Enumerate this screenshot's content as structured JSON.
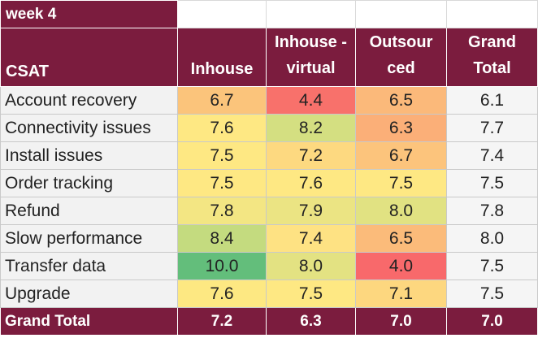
{
  "title": "week 4",
  "header": {
    "row_label": "CSAT",
    "columns": [
      "Inhouse",
      "Inhouse - virtual",
      "Outsour ced",
      "Grand Total"
    ],
    "columns_lines": [
      [
        "Inhouse"
      ],
      [
        "Inhouse -",
        "virtual"
      ],
      [
        "Outsour",
        "ced"
      ],
      [
        "Grand",
        "Total"
      ]
    ]
  },
  "rows": [
    {
      "label": "Account recovery",
      "values": [
        "6.7",
        "4.4",
        "6.5",
        "6.1"
      ],
      "colors": [
        "#fbc47b",
        "#f8716b",
        "#fbb97a",
        "#f5f5f5"
      ]
    },
    {
      "label": "Connectivity issues",
      "values": [
        "7.6",
        "8.2",
        "6.3",
        "7.7"
      ],
      "colors": [
        "#fee883",
        "#d4df81",
        "#fbaf78",
        "#f5f5f5"
      ]
    },
    {
      "label": "Install issues",
      "values": [
        "7.5",
        "7.2",
        "6.7",
        "7.4"
      ],
      "colors": [
        "#fee883",
        "#fdd980",
        "#fcc47c",
        "#f5f5f5"
      ]
    },
    {
      "label": "Order tracking",
      "values": [
        "7.5",
        "7.6",
        "7.5",
        "7.5"
      ],
      "colors": [
        "#fee883",
        "#fee883",
        "#fee883",
        "#f5f5f5"
      ]
    },
    {
      "label": "Refund",
      "values": [
        "7.8",
        "7.9",
        "8.0",
        "7.8"
      ],
      "colors": [
        "#f3e683",
        "#ebe483",
        "#e1e282",
        "#f5f5f5"
      ]
    },
    {
      "label": "Slow performance",
      "values": [
        "8.4",
        "7.4",
        "6.5",
        "8.0"
      ],
      "colors": [
        "#c4db7f",
        "#fee283",
        "#fbbb7a",
        "#f5f5f5"
      ]
    },
    {
      "label": "Transfer data",
      "values": [
        "10.0",
        "8.0",
        "4.0",
        "7.5"
      ],
      "colors": [
        "#63be7b",
        "#e3e282",
        "#f8696b",
        "#f5f5f5"
      ]
    },
    {
      "label": "Upgrade",
      "values": [
        "7.6",
        "7.5",
        "7.1",
        "7.5"
      ],
      "colors": [
        "#fde882",
        "#fee883",
        "#fdd77f",
        "#f5f5f5"
      ]
    }
  ],
  "footer": {
    "label": "Grand Total",
    "values": [
      "7.2",
      "6.3",
      "7.0",
      "7.0"
    ]
  }
}
